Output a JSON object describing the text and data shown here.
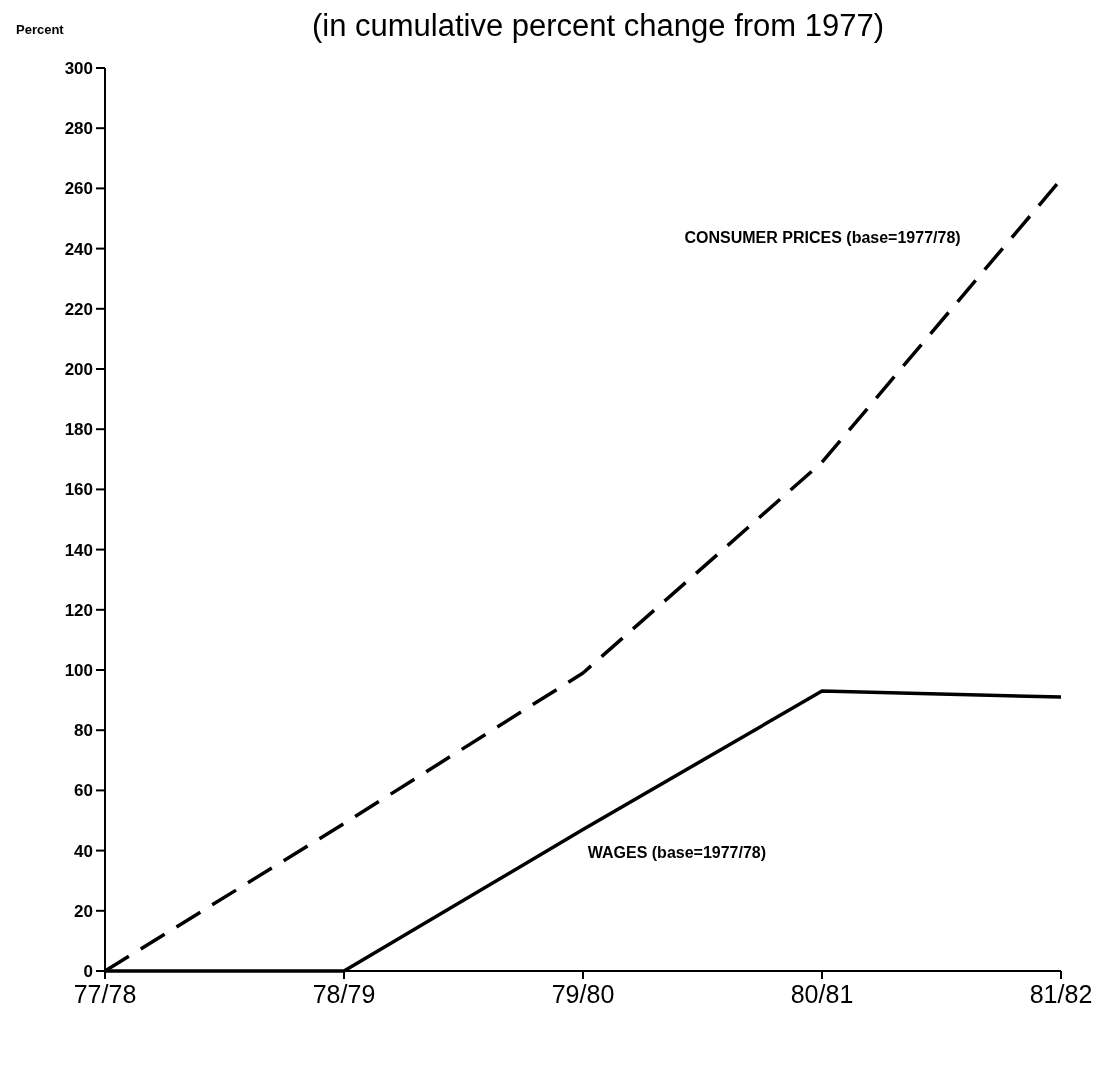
{
  "chart_data": {
    "type": "line",
    "title": "(in cumulative percent change from 1977)",
    "ylabel": "Percent",
    "categories": [
      "77/78",
      "78/79",
      "79/80",
      "80/81",
      "81/82"
    ],
    "series": [
      {
        "name": "CONSUMER PRICES (base=1977/78)",
        "color": "#000000",
        "line_style": "dashed",
        "values": [
          0,
          49,
          99,
          169,
          263
        ]
      },
      {
        "name": "WAGES (base=1977/78)",
        "color": "#000000",
        "line_style": "solid",
        "values": [
          0,
          0,
          47,
          93,
          91
        ]
      }
    ],
    "ylim": [
      0,
      300
    ],
    "yticks": [
      0,
      20,
      40,
      60,
      80,
      100,
      120,
      140,
      160,
      180,
      200,
      220,
      240,
      260,
      280,
      300
    ],
    "grid": false,
    "marker": "none"
  }
}
